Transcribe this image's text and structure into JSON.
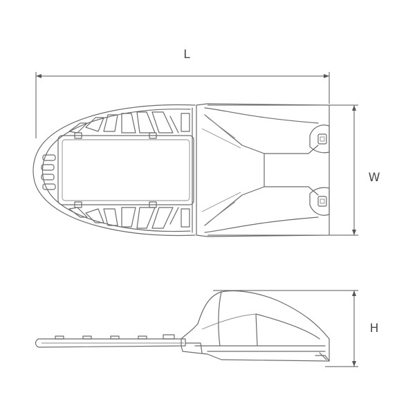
{
  "diagram": {
    "dimension_labels": {
      "length": "L",
      "width": "W",
      "height": "H"
    },
    "colors": {
      "line": "#6b6b6b",
      "background": "#ffffff"
    }
  }
}
